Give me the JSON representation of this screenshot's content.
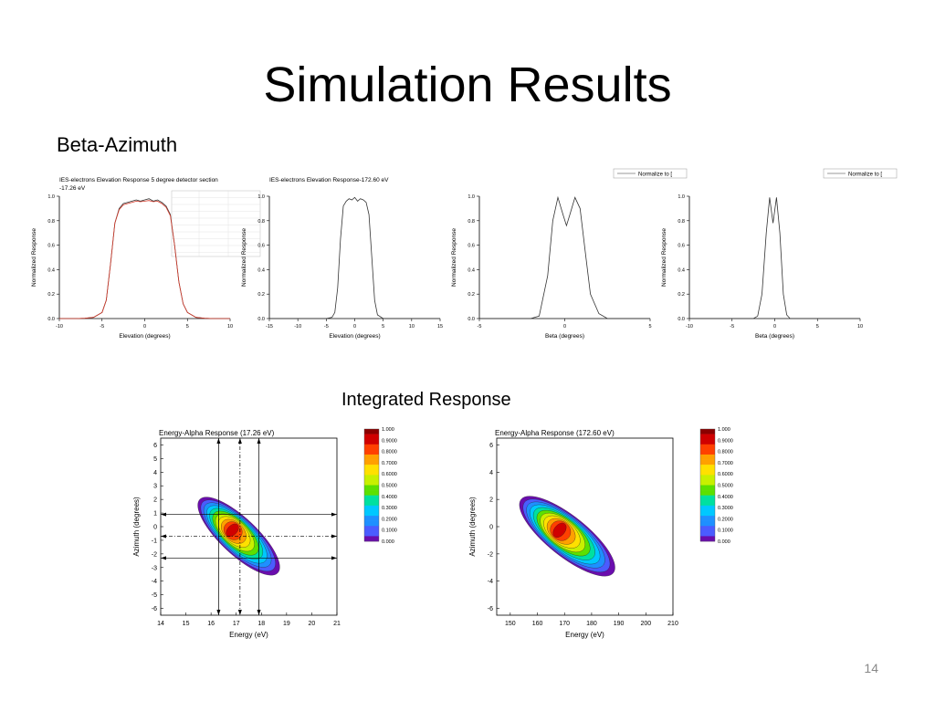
{
  "slide": {
    "title": "Simulation Results",
    "subtitle": "Beta-Azimuth",
    "section_label": "Integrated Response",
    "page_number": "14"
  },
  "colors": {
    "red_curve": "#d43a2a",
    "black_curve": "#333333"
  },
  "chart_data": [
    {
      "type": "line",
      "title": "IES-electrons Elevation Response 5 degree detector section",
      "title_line2": "-17.26 eV",
      "xlabel": "Elevation (degrees)",
      "ylabel": "Normalized Response",
      "xlim": [
        -10,
        10
      ],
      "ylim": [
        0,
        1.0
      ],
      "xticks": [
        -10,
        -5,
        0,
        5,
        10
      ],
      "yticks": [
        0.0,
        0.2,
        0.4,
        0.6,
        0.8,
        1.0
      ],
      "series": [
        {
          "x": [
            -10,
            -8,
            -7,
            -6,
            -5,
            -4.5,
            -4,
            -3.5,
            -3,
            -2.5,
            -2,
            -1.5,
            -1,
            -0.5,
            0,
            0.5,
            1,
            1.5,
            2,
            2.5,
            3,
            3.5,
            4,
            4.5,
            5,
            6,
            7,
            8,
            10
          ],
          "y": [
            0,
            0,
            0.002,
            0.01,
            0.05,
            0.15,
            0.45,
            0.78,
            0.9,
            0.94,
            0.95,
            0.96,
            0.97,
            0.96,
            0.97,
            0.98,
            0.96,
            0.97,
            0.95,
            0.92,
            0.85,
            0.6,
            0.3,
            0.12,
            0.05,
            0.01,
            0.002,
            0,
            0
          ]
        },
        {
          "x": [
            -10,
            -8,
            -7,
            -6,
            -5,
            -4.5,
            -4,
            -3.5,
            -3,
            -2.5,
            -2,
            -1.5,
            -1,
            -0.5,
            0,
            0.5,
            1,
            1.5,
            2,
            2.5,
            3,
            3.5,
            4,
            4.5,
            5,
            6,
            7,
            8,
            10
          ],
          "y": [
            0,
            0,
            0.002,
            0.01,
            0.05,
            0.15,
            0.45,
            0.78,
            0.89,
            0.93,
            0.94,
            0.95,
            0.96,
            0.955,
            0.96,
            0.965,
            0.955,
            0.96,
            0.94,
            0.91,
            0.84,
            0.6,
            0.3,
            0.12,
            0.05,
            0.01,
            0.002,
            0,
            0
          ]
        }
      ],
      "inset_table": true
    },
    {
      "type": "line",
      "title": "IES-electrons Elevation Response-172.60 eV",
      "xlabel": "Elevation (degrees)",
      "ylabel": "Normalized Response",
      "xlim": [
        -15,
        15
      ],
      "ylim": [
        0,
        1.0
      ],
      "xticks": [
        -15,
        -10,
        -5,
        0,
        5,
        10,
        15
      ],
      "yticks": [
        0.0,
        0.2,
        0.4,
        0.6,
        0.8,
        1.0
      ],
      "series": [
        {
          "x": [
            -15,
            -5,
            -4,
            -3.5,
            -3,
            -2.5,
            -2,
            -1.5,
            -1,
            -0.5,
            0,
            0.5,
            1,
            1.5,
            2,
            2.5,
            3,
            3.5,
            4,
            5,
            15
          ],
          "y": [
            0,
            0,
            0.01,
            0.05,
            0.25,
            0.65,
            0.92,
            0.96,
            0.98,
            0.97,
            0.99,
            0.96,
            0.98,
            0.97,
            0.95,
            0.85,
            0.5,
            0.15,
            0.03,
            0,
            0
          ]
        }
      ]
    },
    {
      "type": "line",
      "xlabel": "Beta (degrees)",
      "ylabel": "Normalized Response",
      "legend": "Normalize to [",
      "xlim": [
        -5,
        5
      ],
      "ylim": [
        0,
        1.0
      ],
      "xticks": [
        -5,
        0,
        5
      ],
      "yticks": [
        0.0,
        0.2,
        0.4,
        0.6,
        0.8,
        1.0
      ],
      "series": [
        {
          "x": [
            -5,
            -2,
            -1.5,
            -1,
            -0.7,
            -0.4,
            -0.1,
            0.1,
            0.3,
            0.6,
            0.9,
            1.2,
            1.5,
            2,
            2.5,
            5
          ],
          "y": [
            0,
            0,
            0.02,
            0.35,
            0.8,
            0.99,
            0.85,
            0.76,
            0.85,
            0.99,
            0.9,
            0.55,
            0.2,
            0.04,
            0,
            0
          ]
        }
      ]
    },
    {
      "type": "line",
      "xlabel": "Beta (degrees)",
      "ylabel": "Normalized Response",
      "legend": "Normalize to [",
      "xlim": [
        -10,
        10
      ],
      "ylim": [
        0,
        1.0
      ],
      "xticks": [
        -10,
        -5,
        0,
        5,
        10
      ],
      "yticks": [
        0.0,
        0.2,
        0.4,
        0.6,
        0.8,
        1.0
      ],
      "series": [
        {
          "x": [
            -10,
            -2.5,
            -2,
            -1.5,
            -1,
            -0.6,
            -0.2,
            0.2,
            0.6,
            1,
            1.4,
            1.8,
            2.5,
            10
          ],
          "y": [
            0,
            0,
            0.02,
            0.2,
            0.7,
            0.99,
            0.78,
            0.99,
            0.7,
            0.2,
            0.03,
            0,
            0,
            0
          ]
        }
      ]
    },
    {
      "type": "heatmap",
      "title": "Energy-Alpha Response (17.26 eV)",
      "xlabel": "Energy (eV)",
      "ylabel": "Azimuth (degrees)",
      "xlim": [
        14,
        21
      ],
      "ylim": [
        -6.5,
        6.5
      ],
      "xticks": [
        14,
        15,
        16,
        17,
        18,
        19,
        20,
        21
      ],
      "yticks": [
        -6,
        -5,
        -4,
        -3,
        -2,
        -1,
        0,
        1,
        2,
        3,
        4,
        5,
        6
      ],
      "blob": {
        "center": [
          17.1,
          -0.7
        ],
        "extent_low": [
          16.2,
          1.6
        ],
        "extent_high": [
          19.3,
          -3.8
        ]
      },
      "guides": {
        "vertical": [
          16.3,
          17.15,
          17.9
        ],
        "horizontal": [
          0.9,
          -0.7,
          -2.3
        ]
      },
      "colorbar": {
        "levels": [
          "1.000",
          "0.9000",
          "0.8000",
          "0.7000",
          "0.6000",
          "0.5000",
          "0.4000",
          "0.3000",
          "0.2000",
          "0.1000",
          "0.000"
        ]
      }
    },
    {
      "type": "heatmap",
      "title": "Energy-Alpha Response (172.60 eV)",
      "xlabel": "Energy (eV)",
      "ylabel": "Azimuth (degrees)",
      "xlim": [
        145,
        210
      ],
      "ylim": [
        -6.5,
        6.5
      ],
      "xticks": [
        150,
        160,
        170,
        180,
        190,
        200,
        210
      ],
      "yticks": [
        -6,
        -4,
        -2,
        0,
        2,
        4,
        6
      ],
      "blob": {
        "center": [
          171,
          -0.7
        ],
        "extent_low": [
          160,
          1.6
        ],
        "extent_high": [
          194,
          -3.8
        ]
      },
      "colorbar": {
        "levels": [
          "1.000",
          "0.9000",
          "0.8000",
          "0.7000",
          "0.6000",
          "0.5000",
          "0.4000",
          "0.3000",
          "0.2000",
          "0.1000",
          "0.000"
        ]
      }
    }
  ]
}
